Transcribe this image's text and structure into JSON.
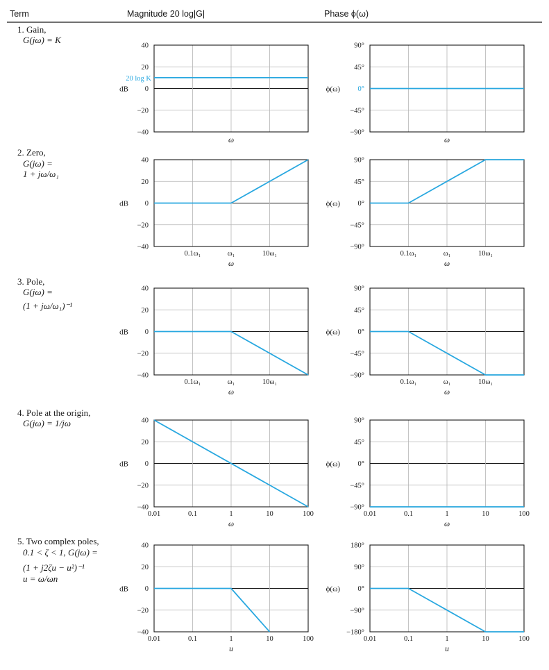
{
  "header": {
    "term": "Term",
    "magnitude": "Magnitude 20 log|G|",
    "phase": "Phase ϕ(ω)"
  },
  "rows": [
    {
      "term_lines": [
        "1. Gain,",
        "G(jω)  =  K"
      ],
      "term_italic": [
        false,
        true
      ]
    },
    {
      "term_lines": [
        "2. Zero,",
        "G(jω)  =",
        "1 + jω/ω₁"
      ],
      "term_italic": [
        false,
        true,
        true
      ]
    },
    {
      "term_lines": [
        "3. Pole,",
        "G(jω)  =",
        "(1 + jω/ω₁)⁻¹"
      ],
      "term_italic": [
        false,
        true,
        true
      ]
    },
    {
      "term_lines": [
        "4. Pole at the origin,",
        "G(jω)  =  1/jω"
      ],
      "term_italic": [
        false,
        true
      ]
    },
    {
      "term_lines": [
        "5. Two complex poles,",
        "0.1 < ζ < 1, G(jω)  =",
        "(1 + j2ζu − u²)⁻¹",
        "u = ω/ωn"
      ],
      "term_italic": [
        false,
        true,
        true,
        true
      ]
    }
  ],
  "chart_data": [
    {
      "type": "line",
      "id": "gain-mag",
      "ylabel": "dB",
      "xlabel": "ω",
      "ylim": [
        -40,
        40
      ],
      "yticks": [
        40,
        20,
        0,
        -20,
        -40
      ],
      "ytick_labels": [
        "40",
        "20",
        "0",
        "−20",
        "−40"
      ],
      "xlim": [
        0,
        4
      ],
      "xgrid": [
        1,
        2,
        3
      ],
      "xtick_labels": [],
      "series": [
        {
          "points": [
            [
              0,
              10
            ],
            [
              4,
              10
            ]
          ]
        }
      ],
      "annotation": "20 log K"
    },
    {
      "type": "line",
      "id": "gain-phase",
      "ylabel": "ϕ(ω)",
      "xlabel": "ω",
      "ylim": [
        -90,
        90
      ],
      "yticks": [
        90,
        45,
        0,
        -45,
        -90
      ],
      "ytick_labels": [
        "90°",
        "45°",
        "0°",
        "−45°",
        "−90°"
      ],
      "xlim": [
        0,
        4
      ],
      "xgrid": [
        1,
        2,
        3
      ],
      "xtick_labels": [],
      "series": [
        {
          "points": [
            [
              0,
              0
            ],
            [
              4,
              0
            ]
          ]
        }
      ],
      "highlight_tick": "0°"
    },
    {
      "type": "line",
      "id": "zero-mag",
      "ylabel": "dB",
      "xlabel": "ω",
      "ylim": [
        -40,
        40
      ],
      "yticks": [
        40,
        20,
        0,
        -20,
        -40
      ],
      "ytick_labels": [
        "40",
        "20",
        "0",
        "−20",
        "−40"
      ],
      "xlim": [
        0,
        4
      ],
      "xgrid": [
        1,
        2,
        3
      ],
      "xtick_labels": [
        [
          1,
          "0.1ω₁"
        ],
        [
          2,
          "ω₁"
        ],
        [
          3,
          "10ω₁"
        ]
      ],
      "series": [
        {
          "points": [
            [
              0,
              0
            ],
            [
              2,
              0
            ],
            [
              4,
              40
            ]
          ]
        }
      ]
    },
    {
      "type": "line",
      "id": "zero-phase",
      "ylabel": "ϕ(ω)",
      "xlabel": "ω",
      "ylim": [
        -90,
        90
      ],
      "yticks": [
        90,
        45,
        0,
        -45,
        -90
      ],
      "ytick_labels": [
        "90°",
        "45°",
        "0°",
        "−45°",
        "−90°"
      ],
      "xlim": [
        0,
        4
      ],
      "xgrid": [
        1,
        2,
        3
      ],
      "xtick_labels": [
        [
          1,
          "0.1ω₁"
        ],
        [
          2,
          "ω₁"
        ],
        [
          3,
          "10ω₁"
        ]
      ],
      "series": [
        {
          "points": [
            [
              0,
              0
            ],
            [
              1,
              0
            ],
            [
              3,
              90
            ],
            [
              4,
              90
            ]
          ]
        }
      ]
    },
    {
      "type": "line",
      "id": "pole-mag",
      "ylabel": "dB",
      "xlabel": "ω",
      "ylim": [
        -40,
        40
      ],
      "yticks": [
        40,
        20,
        0,
        -20,
        -40
      ],
      "ytick_labels": [
        "40",
        "20",
        "0",
        "−20",
        "−40"
      ],
      "xlim": [
        0,
        4
      ],
      "xgrid": [
        1,
        2,
        3
      ],
      "xtick_labels": [
        [
          1,
          "0.1ω₁"
        ],
        [
          2,
          "ω₁"
        ],
        [
          3,
          "10ω₁"
        ]
      ],
      "series": [
        {
          "points": [
            [
              0,
              0
            ],
            [
              2,
              0
            ],
            [
              4,
              -40
            ]
          ]
        }
      ]
    },
    {
      "type": "line",
      "id": "pole-phase",
      "ylabel": "ϕ(ω)",
      "xlabel": "ω",
      "ylim": [
        -90,
        90
      ],
      "yticks": [
        90,
        45,
        0,
        -45,
        -90
      ],
      "ytick_labels": [
        "90°",
        "45°",
        "0°",
        "−45°",
        "−90°"
      ],
      "xlim": [
        0,
        4
      ],
      "xgrid": [
        1,
        2,
        3
      ],
      "xtick_labels": [
        [
          1,
          "0.1ω₁"
        ],
        [
          2,
          "ω₁"
        ],
        [
          3,
          "10ω₁"
        ]
      ],
      "series": [
        {
          "points": [
            [
              0,
              0
            ],
            [
              1,
              0
            ],
            [
              3,
              -90
            ],
            [
              4,
              -90
            ]
          ]
        }
      ]
    },
    {
      "type": "line",
      "id": "origin-mag",
      "ylabel": "dB",
      "xlabel": "ω",
      "ylim": [
        -40,
        40
      ],
      "yticks": [
        40,
        20,
        0,
        -20,
        -40
      ],
      "ytick_labels": [
        "40",
        "20",
        "0",
        "−20",
        "−40"
      ],
      "xlim": [
        0,
        4
      ],
      "xgrid": [
        1,
        2,
        3
      ],
      "xtick_labels": [
        [
          0,
          "0.01"
        ],
        [
          1,
          "0.1"
        ],
        [
          2,
          "1"
        ],
        [
          3,
          "10"
        ],
        [
          4,
          "100"
        ]
      ],
      "series": [
        {
          "points": [
            [
              0,
              40
            ],
            [
              4,
              -40
            ]
          ]
        }
      ]
    },
    {
      "type": "line",
      "id": "origin-phase",
      "ylabel": "ϕ(ω)",
      "xlabel": "ω",
      "ylim": [
        -90,
        90
      ],
      "yticks": [
        90,
        45,
        0,
        -45,
        -90
      ],
      "ytick_labels": [
        "90°",
        "45°",
        "0°",
        "−45°",
        "−90°"
      ],
      "xlim": [
        0,
        4
      ],
      "xgrid": [
        1,
        2,
        3
      ],
      "xtick_labels": [
        [
          0,
          "0.01"
        ],
        [
          1,
          "0.1"
        ],
        [
          2,
          "1"
        ],
        [
          3,
          "10"
        ],
        [
          4,
          "100"
        ]
      ],
      "series": [
        {
          "points": [
            [
              0,
              -90
            ],
            [
              4,
              -90
            ]
          ]
        }
      ]
    },
    {
      "type": "line",
      "id": "complex-mag",
      "ylabel": "dB",
      "xlabel": "u",
      "ylim": [
        -40,
        40
      ],
      "yticks": [
        40,
        20,
        0,
        -20,
        -40
      ],
      "ytick_labels": [
        "40",
        "20",
        "0",
        "−20",
        "−40"
      ],
      "xlim": [
        0,
        4
      ],
      "xgrid": [
        1,
        2,
        3
      ],
      "xtick_labels": [
        [
          0,
          "0.01"
        ],
        [
          1,
          "0.1"
        ],
        [
          2,
          "1"
        ],
        [
          3,
          "10"
        ],
        [
          4,
          "100"
        ]
      ],
      "series": [
        {
          "points": [
            [
              0,
              0
            ],
            [
              2,
              0
            ],
            [
              3,
              -40
            ]
          ]
        }
      ]
    },
    {
      "type": "line",
      "id": "complex-phase",
      "ylabel": "ϕ(ω)",
      "xlabel": "u",
      "ylim": [
        -180,
        180
      ],
      "yticks": [
        180,
        90,
        0,
        -90,
        -180
      ],
      "ytick_labels": [
        "180°",
        "90°",
        "0°",
        "−90°",
        "−180°"
      ],
      "xlim": [
        0,
        4
      ],
      "xgrid": [
        1,
        2,
        3
      ],
      "xtick_labels": [
        [
          0,
          "0.01"
        ],
        [
          1,
          "0.1"
        ],
        [
          2,
          "1"
        ],
        [
          3,
          "10"
        ],
        [
          4,
          "100"
        ]
      ],
      "series": [
        {
          "points": [
            [
              0,
              0
            ],
            [
              1,
              0
            ],
            [
              3,
              -180
            ],
            [
              4,
              -180
            ]
          ]
        }
      ]
    }
  ],
  "colors": {
    "curve": "#29a8e0",
    "annotation": "#29a8e0"
  }
}
